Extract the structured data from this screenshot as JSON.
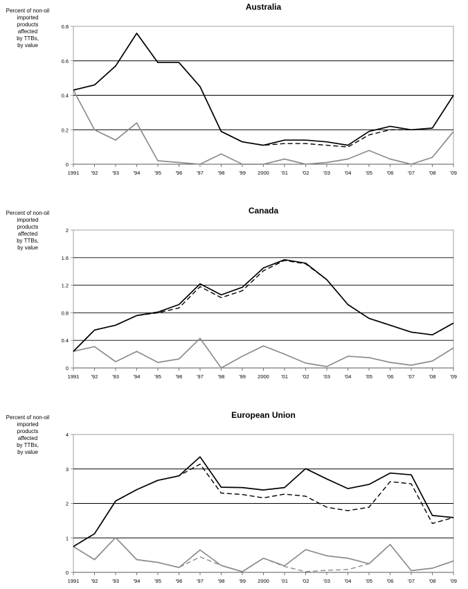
{
  "chart_data": [
    {
      "type": "line",
      "title": "Australia",
      "ylabel": [
        "Percent of non-oil",
        "imported",
        "products",
        "affected",
        "by TTBs,",
        "by value"
      ],
      "categories": [
        "1991",
        "'92",
        "'93",
        "'94",
        "'95",
        "'96",
        "'97",
        "'98",
        "'99",
        "2000",
        "'01",
        "'02",
        "'03",
        "'04",
        "'05",
        "'06",
        "'07",
        "'08",
        "'09"
      ],
      "ylim": [
        0,
        0.8
      ],
      "yticks": [
        "0",
        "0.2",
        "0.4",
        "0.6",
        "0.8"
      ],
      "grid": true,
      "series": [
        {
          "style": "solid-black",
          "values": [
            0.43,
            0.46,
            0.57,
            0.76,
            0.59,
            0.59,
            0.45,
            0.19,
            0.13,
            0.11,
            0.14,
            0.14,
            0.13,
            0.11,
            0.19,
            0.22,
            0.2,
            0.21,
            0.4
          ]
        },
        {
          "style": "dashed-black",
          "values": [
            0.43,
            0.46,
            0.57,
            0.76,
            0.59,
            0.59,
            0.45,
            0.19,
            0.13,
            0.11,
            0.12,
            0.12,
            0.11,
            0.1,
            0.17,
            0.2,
            0.2,
            0.21,
            0.4
          ]
        },
        {
          "style": "solid-gray",
          "values": [
            0.43,
            0.2,
            0.14,
            0.24,
            0.02,
            0.01,
            0.0,
            0.06,
            0.0,
            0.0,
            0.03,
            0.0,
            0.01,
            0.03,
            0.08,
            0.03,
            0.0,
            0.04,
            0.19
          ]
        }
      ]
    },
    {
      "type": "line",
      "title": "Canada",
      "ylabel": [
        "Percent of non-oil",
        "imported",
        "products",
        "affected",
        "by TTBs,",
        "by value"
      ],
      "categories": [
        "1991",
        "'92",
        "'93",
        "'94",
        "'95",
        "'96",
        "'97",
        "'98",
        "'99",
        "2000",
        "'01",
        "'02",
        "'03",
        "'04",
        "'05",
        "'06",
        "'07",
        "'08",
        "'09"
      ],
      "ylim": [
        0,
        2
      ],
      "yticks": [
        "0",
        "0.4",
        "0.8",
        "1.2",
        "1.6",
        "2"
      ],
      "grid": true,
      "series": [
        {
          "style": "solid-black",
          "values": [
            0.24,
            0.55,
            0.62,
            0.76,
            0.81,
            0.92,
            1.22,
            1.06,
            1.17,
            1.45,
            1.57,
            1.52,
            1.28,
            0.92,
            0.72,
            0.62,
            0.52,
            0.48,
            0.65
          ]
        },
        {
          "style": "dashed-black",
          "values": [
            0.24,
            0.55,
            0.62,
            0.76,
            0.8,
            0.87,
            1.18,
            1.02,
            1.12,
            1.41,
            1.56,
            1.51,
            1.28,
            0.92,
            0.72,
            0.62,
            0.52,
            0.48,
            0.65
          ]
        },
        {
          "style": "solid-gray",
          "values": [
            0.24,
            0.31,
            0.09,
            0.24,
            0.08,
            0.13,
            0.43,
            0.0,
            0.17,
            0.32,
            0.2,
            0.07,
            0.02,
            0.17,
            0.15,
            0.08,
            0.04,
            0.1,
            0.29
          ]
        }
      ]
    },
    {
      "type": "line",
      "title": "European Union",
      "ylabel": [
        "Percent of non-oil",
        "imported",
        "products",
        "affected",
        "by TTBs,",
        "by value"
      ],
      "categories": [
        "1991",
        "'92",
        "'93",
        "'94",
        "'95",
        "'96",
        "'97",
        "'98",
        "'99",
        "2000",
        "'01",
        "'02",
        "'03",
        "'04",
        "'05",
        "'06",
        "'07",
        "'08",
        "'09"
      ],
      "ylim": [
        0,
        4
      ],
      "yticks": [
        "0",
        "1",
        "2",
        "3",
        "4"
      ],
      "grid": true,
      "series": [
        {
          "style": "solid-black",
          "values": [
            0.75,
            1.12,
            2.07,
            2.4,
            2.67,
            2.8,
            3.35,
            2.47,
            2.46,
            2.39,
            2.46,
            3.01,
            2.71,
            2.43,
            2.55,
            2.88,
            2.83,
            1.65,
            1.59
          ]
        },
        {
          "style": "dashed-black",
          "values": [
            0.75,
            1.12,
            2.07,
            2.4,
            2.67,
            2.8,
            3.14,
            2.3,
            2.26,
            2.16,
            2.27,
            2.21,
            1.89,
            1.79,
            1.89,
            2.63,
            2.57,
            1.42,
            1.59
          ]
        },
        {
          "style": "solid-gray",
          "values": [
            0.75,
            0.37,
            1.01,
            0.37,
            0.29,
            0.14,
            0.65,
            0.2,
            0.02,
            0.41,
            0.19,
            0.66,
            0.48,
            0.41,
            0.25,
            0.81,
            0.05,
            0.12,
            0.33
          ]
        },
        {
          "style": "dashed-gray",
          "values": [
            0.75,
            0.37,
            1.01,
            0.37,
            0.29,
            0.14,
            0.45,
            0.2,
            0.02,
            0.41,
            0.17,
            0.02,
            0.06,
            0.08,
            0.25,
            0.81,
            0.05,
            0.12,
            0.33
          ]
        }
      ]
    }
  ]
}
